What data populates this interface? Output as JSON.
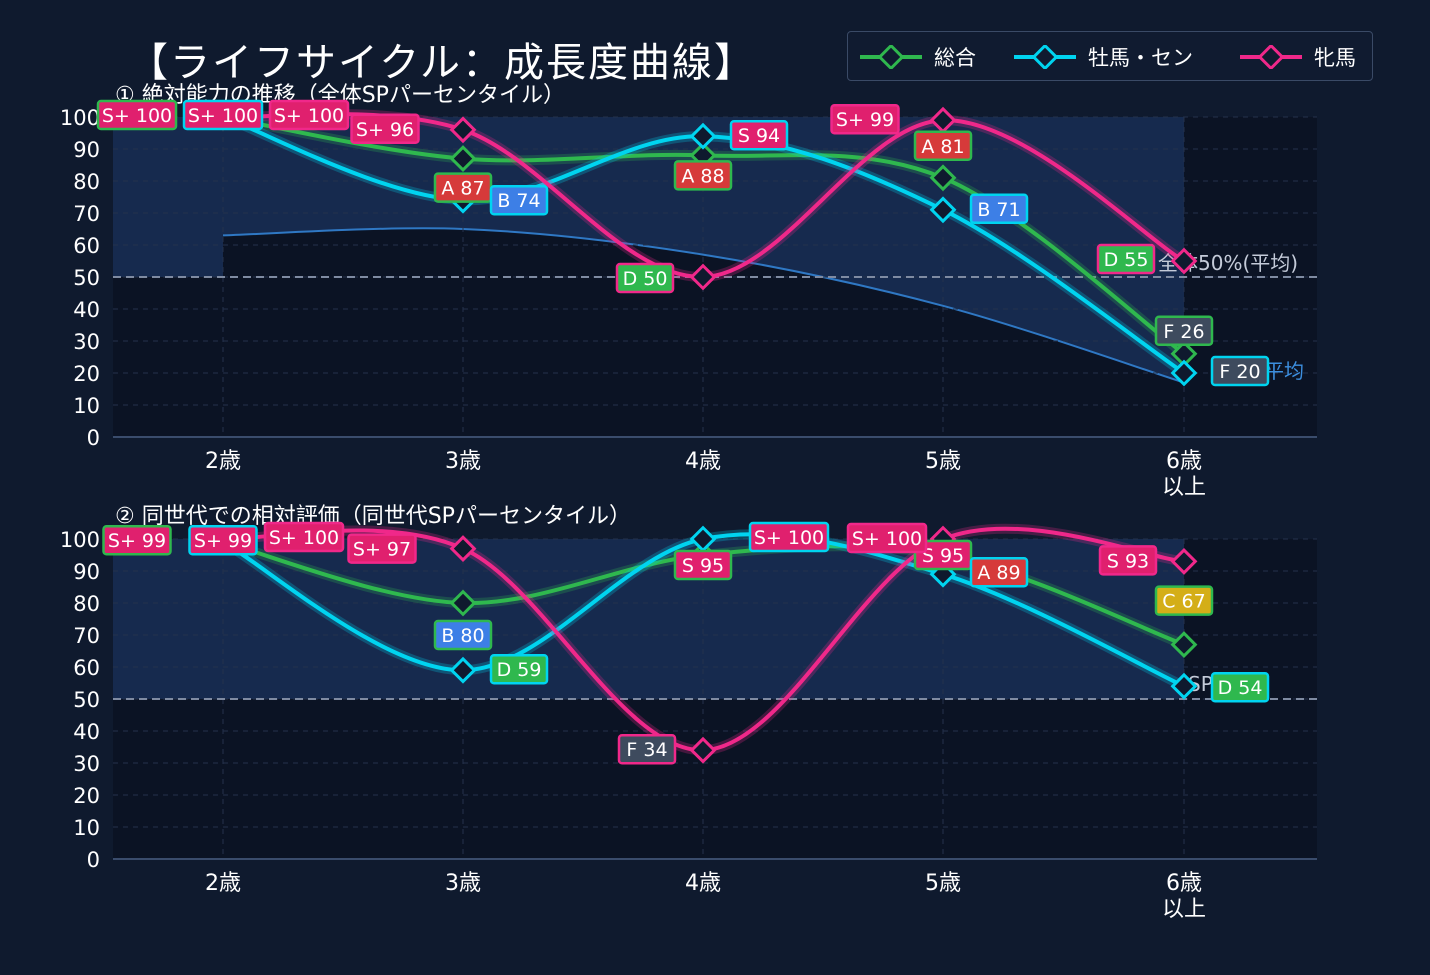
{
  "title": "【ライフサイクル：成長度曲線】",
  "legend": [
    {
      "name": "総合",
      "color": "#2fb84e"
    },
    {
      "name": "牡馬・セン",
      "color": "#00d4f0"
    },
    {
      "name": "牝馬",
      "color": "#f0288a"
    }
  ],
  "chart_data": [
    {
      "type": "line",
      "title": "① 絶対能力の推移（全体SPパーセンタイル）",
      "categories": [
        "2歳",
        "3歳",
        "4歳",
        "5歳",
        "6歳\n以上"
      ],
      "ylim": [
        0,
        100
      ],
      "yticks": [
        0,
        10,
        20,
        30,
        40,
        50,
        60,
        70,
        80,
        90,
        100
      ],
      "grid": true,
      "reference_line": {
        "y": 50,
        "label": "全体50%(平均)"
      },
      "average_curve": {
        "values": [
          63,
          65,
          57,
          41,
          17
        ],
        "label": "平均"
      },
      "series": [
        {
          "name": "総合",
          "values": [
            100,
            87,
            88,
            81,
            26
          ],
          "grades": [
            "S+",
            "A",
            "A",
            "A",
            "F"
          ]
        },
        {
          "name": "牡馬・セン",
          "values": [
            100,
            74,
            94,
            71,
            20
          ],
          "grades": [
            "S+",
            "B",
            "S",
            "B",
            "F"
          ]
        },
        {
          "name": "牝馬",
          "values": [
            100,
            96,
            50,
            99,
            55
          ],
          "grades": [
            "S+",
            "S+",
            "D",
            "S+",
            "D"
          ]
        }
      ]
    },
    {
      "type": "line",
      "title": "② 同世代での相対評価（同世代SPパーセンタイル）",
      "categories": [
        "2歳",
        "3歳",
        "4歳",
        "5歳",
        "6歳\n以上"
      ],
      "ylim": [
        0,
        100
      ],
      "yticks": [
        0,
        10,
        20,
        30,
        40,
        50,
        60,
        70,
        80,
        90,
        100
      ],
      "grid": true,
      "reference_line": {
        "y": 50,
        "label": "SP平均)"
      },
      "series": [
        {
          "name": "総合",
          "values": [
            99,
            80,
            95,
            95,
            67
          ],
          "grades": [
            "S+",
            "B",
            "S",
            "S",
            "C"
          ]
        },
        {
          "name": "牡馬・セン",
          "values": [
            99,
            59,
            100,
            89,
            54
          ],
          "grades": [
            "S+",
            "D",
            "S+",
            "A",
            "D"
          ]
        },
        {
          "name": "牝馬",
          "values": [
            100,
            97,
            34,
            100,
            93
          ],
          "grades": [
            "S+",
            "S+",
            "F",
            "S+",
            "S"
          ]
        }
      ]
    }
  ]
}
